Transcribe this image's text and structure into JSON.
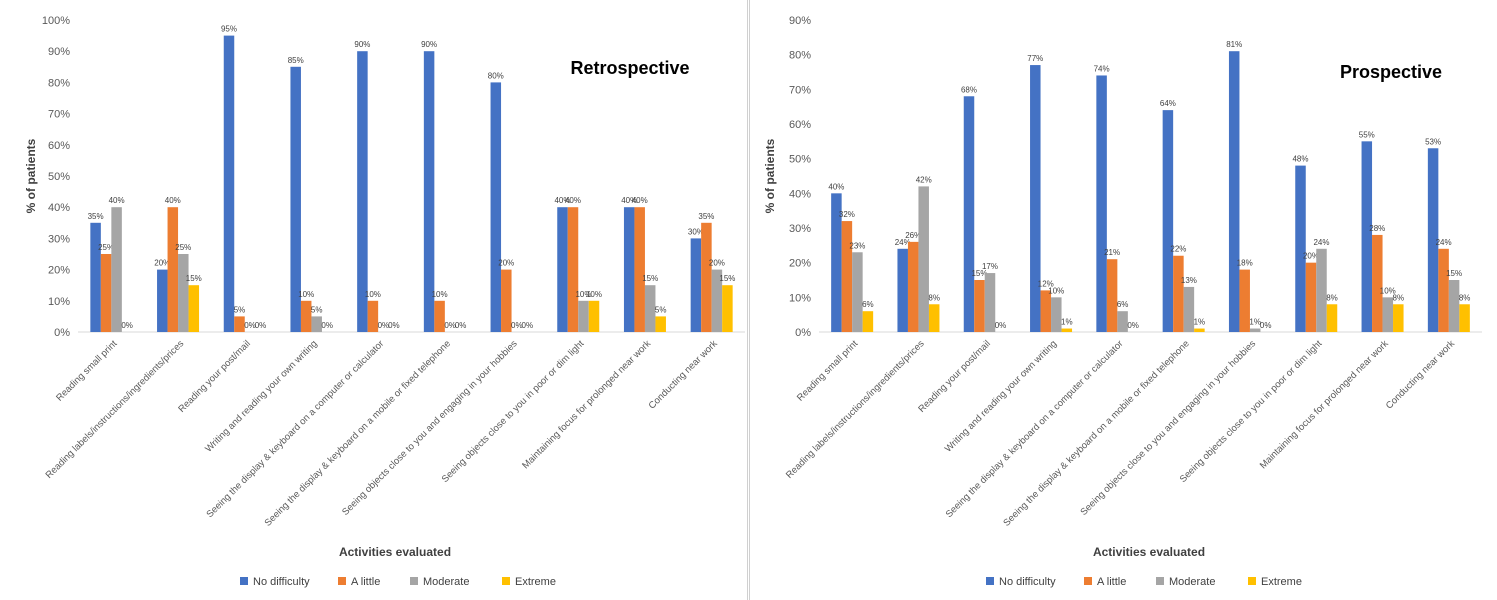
{
  "chart_data": [
    {
      "type": "bar",
      "title": "Retrospective",
      "xlabel": "Activities evaluated",
      "ylabel": "% of patients",
      "ylim": [
        0,
        100
      ],
      "yticks": [
        "0%",
        "10%",
        "20%",
        "30%",
        "40%",
        "50%",
        "60%",
        "70%",
        "80%",
        "90%",
        "100%"
      ],
      "grid": false,
      "legend_position": "bottom",
      "categories": [
        "Reading small print",
        "Reading labels/instructions/ingredients/prices",
        "Reading your post/mail",
        "Writing and reading your own writing",
        "Seeing the display & keyboard on a computer or calculator",
        "Seeing the display & keyboard on a mobile or fixed telephone",
        "Seeing objects close to you and engaging in your hobbies",
        "Seeing objects close to you in poor or dim light",
        "Maintaining focus for prolonged near work",
        "Conducting near work"
      ],
      "series": [
        {
          "name": "No difficulty",
          "color": "#4472C4",
          "values": [
            35,
            20,
            95,
            85,
            90,
            90,
            80,
            40,
            40,
            30
          ],
          "labels": [
            "35%",
            "20%",
            "95%",
            "85%",
            "90%",
            "90%",
            "80%",
            "40%",
            "40%",
            "30%"
          ]
        },
        {
          "name": "A little",
          "color": "#ED7D31",
          "values": [
            25,
            40,
            5,
            10,
            10,
            10,
            20,
            40,
            40,
            35
          ],
          "labels": [
            "25%",
            "40%",
            "5%",
            "10%",
            "10%",
            "10%",
            "20%",
            "40%",
            "40%",
            "35%"
          ]
        },
        {
          "name": "Moderate",
          "color": "#A5A5A5",
          "values": [
            40,
            25,
            0,
            5,
            0,
            0,
            0,
            10,
            15,
            20
          ],
          "labels": [
            "40%",
            "25%",
            "0%",
            "5%",
            "0%",
            "0%",
            "0%",
            "10%",
            "15%",
            "20%"
          ]
        },
        {
          "name": "Extreme",
          "color": "#FFC000",
          "values": [
            0,
            15,
            0,
            0,
            0,
            0,
            0,
            10,
            5,
            15
          ],
          "labels": [
            "0%",
            "15%",
            "0%",
            "0%",
            "0%",
            "0%",
            "0%",
            "10%",
            "5%",
            "15%"
          ]
        }
      ]
    },
    {
      "type": "bar",
      "title": "Prospective",
      "xlabel": "Activities evaluated",
      "ylabel": "% of patients",
      "ylim": [
        0,
        90
      ],
      "yticks": [
        "0%",
        "10%",
        "20%",
        "30%",
        "40%",
        "50%",
        "60%",
        "70%",
        "80%",
        "90%"
      ],
      "grid": false,
      "legend_position": "bottom",
      "categories": [
        "Reading small print",
        "Reading labels/instructions/ingredients/prices",
        "Reading your post/mail",
        "Writing and reading your own writing",
        "Seeing the display & keyboard on a computer or calculator",
        "Seeing the display & keyboard on a mobile or fixed telephone",
        "Seeing objects close to you and engaging in your hobbies",
        "Seeing objects close to you in poor or dim light",
        "Maintaining focus for prolonged near work",
        "Conducting near work"
      ],
      "series": [
        {
          "name": "No difficulty",
          "color": "#4472C4",
          "values": [
            40,
            24,
            68,
            77,
            74,
            64,
            81,
            48,
            55,
            53
          ],
          "labels": [
            "40%",
            "24%",
            "68%",
            "77%",
            "74%",
            "64%",
            "81%",
            "48%",
            "55%",
            "53%"
          ]
        },
        {
          "name": "A little",
          "color": "#ED7D31",
          "values": [
            32,
            26,
            15,
            12,
            21,
            22,
            18,
            20,
            28,
            24
          ],
          "labels": [
            "32%",
            "26%",
            "15%",
            "12%",
            "21%",
            "22%",
            "18%",
            "20%",
            "28%",
            "24%"
          ]
        },
        {
          "name": "Moderate",
          "color": "#A5A5A5",
          "values": [
            23,
            42,
            17,
            10,
            6,
            13,
            1,
            24,
            10,
            15
          ],
          "labels": [
            "23%",
            "42%",
            "17%",
            "10%",
            "6%",
            "13%",
            "1%",
            "24%",
            "10%",
            "15%"
          ]
        },
        {
          "name": "Extreme",
          "color": "#FFC000",
          "values": [
            6,
            8,
            0,
            1,
            0,
            1,
            0,
            8,
            8,
            8
          ],
          "labels": [
            "6%",
            "8%",
            "0%",
            "1%",
            "0%",
            "1%",
            "0%",
            "8%",
            "8%",
            "8%"
          ]
        }
      ]
    }
  ]
}
